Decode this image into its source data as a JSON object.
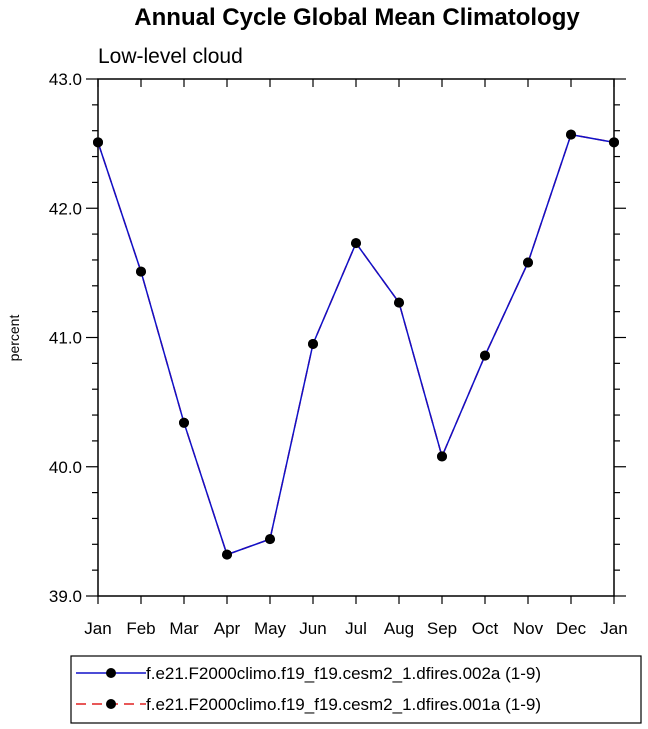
{
  "chart_data": {
    "type": "line",
    "title": "Annual Cycle Global Mean Climatology",
    "subtitle": "Low-level cloud",
    "ylabel": "percent",
    "xlabel": "",
    "categories": [
      "Jan",
      "Feb",
      "Mar",
      "Apr",
      "May",
      "Jun",
      "Jul",
      "Aug",
      "Sep",
      "Oct",
      "Nov",
      "Dec",
      "Jan"
    ],
    "ylim": [
      39.0,
      43.0
    ],
    "yticks": [
      "39.0",
      "40.0",
      "41.0",
      "42.0",
      "43.0"
    ],
    "grid": false,
    "legend_position": "bottom",
    "series": [
      {
        "name": "f.e21.F2000climo.f19_f19.cesm2_1.dfires.002a (1-9)",
        "color": "#1010c8",
        "style": "solid",
        "values": [
          42.51,
          41.51,
          40.34,
          39.32,
          39.44,
          40.95,
          41.73,
          41.27,
          40.08,
          40.86,
          41.58,
          42.57,
          42.51
        ]
      },
      {
        "name": "f.e21.F2000climo.f19_f19.cesm2_1.dfires.001a (1-9)",
        "color": "#e02020",
        "style": "dashed",
        "values": [
          42.51,
          41.51,
          40.34,
          39.32,
          39.44,
          40.95,
          41.73,
          41.27,
          40.08,
          40.86,
          41.58,
          42.57,
          42.51
        ]
      }
    ]
  }
}
